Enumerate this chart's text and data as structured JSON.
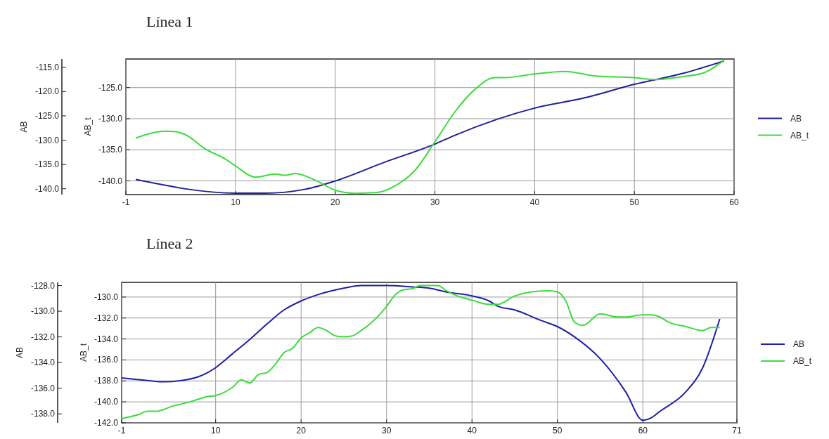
{
  "chart_data": [
    {
      "type": "line",
      "title": "Línea 1",
      "ylabel": "AB_t",
      "y2label": "AB",
      "xlim": [
        -1,
        60
      ],
      "xticks": [
        -1,
        10,
        20,
        30,
        40,
        50,
        60
      ],
      "ylim": [
        -142.2,
        -120.4
      ],
      "yticks": [
        {
          "value": -125,
          "label": "-125.0"
        },
        {
          "value": -130,
          "label": "-130.0"
        },
        {
          "value": -135,
          "label": "-135.0"
        },
        {
          "value": -140,
          "label": "-140.0"
        }
      ],
      "y2lim": [
        -141.2,
        -113.3
      ],
      "y2ticks": [
        {
          "value": -115,
          "label": "-115.0"
        },
        {
          "value": -120,
          "label": "-120.0"
        },
        {
          "value": -125,
          "label": "-125.0"
        },
        {
          "value": -130,
          "label": "-130.0"
        },
        {
          "value": -135,
          "label": "-135.0"
        },
        {
          "value": -140,
          "label": "-140.0"
        }
      ],
      "grid": true,
      "legend": "right",
      "series": [
        {
          "name": "AB",
          "color": "#1f1f99",
          "axis": "y2",
          "x": [
            0,
            10,
            13,
            17,
            20,
            25,
            30,
            32,
            40,
            45,
            50,
            55,
            59
          ],
          "values": [
            -138.1,
            -140.9,
            -140.9,
            -140.1,
            -138.4,
            -134.5,
            -130.8,
            -129.0,
            -123.4,
            -121.3,
            -118.5,
            -116.2,
            -113.7
          ]
        },
        {
          "name": "AB_t",
          "color": "#3cdc3c",
          "x": [
            0,
            3,
            4,
            5,
            7,
            9,
            10,
            12,
            14,
            15,
            16,
            18,
            20,
            22,
            24,
            26,
            28,
            30,
            32,
            34,
            36,
            37,
            40,
            43,
            46,
            50,
            52,
            55,
            57,
            59
          ],
          "values": [
            -133.1,
            -132.0,
            -132.1,
            -132.6,
            -134.9,
            -136.5,
            -137.6,
            -139.4,
            -138.9,
            -139.1,
            -138.8,
            -139.9,
            -141.5,
            -142.0,
            -141.9,
            -140.8,
            -138.3,
            -133.7,
            -128.9,
            -125.3,
            -123.4,
            -123.4,
            -122.8,
            -122.4,
            -123.1,
            -123.4,
            -123.7,
            -123.2,
            -122.6,
            -120.6
          ]
        }
      ]
    },
    {
      "type": "line",
      "title": "Línea 2",
      "ylabel": "AB_t",
      "y2label": "AB",
      "xlim": [
        -1,
        71
      ],
      "xticks": [
        -1,
        10,
        20,
        30,
        40,
        50,
        60,
        71
      ],
      "ylim": [
        -142.0,
        -128.6
      ],
      "yticks": [
        {
          "value": -130,
          "label": "-130.0"
        },
        {
          "value": -132,
          "label": "-132.0"
        },
        {
          "value": -134,
          "label": "-134.0"
        },
        {
          "value": -136,
          "label": "-136.0"
        },
        {
          "value": -138,
          "label": "-138.0"
        },
        {
          "value": -140,
          "label": "-140.0"
        },
        {
          "value": -142,
          "label": "-142.0"
        }
      ],
      "y2lim": [
        -138.7,
        -127.75
      ],
      "y2ticks": [
        {
          "value": -128,
          "label": "-128.0"
        },
        {
          "value": -130,
          "label": "-130.0"
        },
        {
          "value": -132,
          "label": "-132.0"
        },
        {
          "value": -134,
          "label": "-134.0"
        },
        {
          "value": -136,
          "label": "-136.0"
        },
        {
          "value": -138,
          "label": "-138.0"
        }
      ],
      "grid": true,
      "legend": "right",
      "series": [
        {
          "name": "AB",
          "color": "#1f1fa8",
          "axis": "y2",
          "x": [
            -1,
            2,
            4,
            6,
            8,
            9,
            10,
            12,
            14,
            16,
            18,
            20,
            22,
            25,
            27,
            30,
            33,
            35,
            37,
            40,
            42,
            43,
            45,
            48,
            50,
            52,
            55,
            58,
            60,
            61,
            62,
            65,
            67,
            69
          ],
          "values": [
            -135.2,
            -135.4,
            -135.5,
            -135.4,
            -135.1,
            -134.8,
            -134.4,
            -133.3,
            -132.2,
            -131.0,
            -129.9,
            -129.2,
            -128.7,
            -128.2,
            -128.0,
            -128.0,
            -128.1,
            -128.2,
            -128.5,
            -128.8,
            -129.2,
            -129.6,
            -129.9,
            -130.7,
            -131.2,
            -132.0,
            -133.7,
            -136.3,
            -138.5,
            -138.3,
            -137.8,
            -136.3,
            -134.4,
            -130.6
          ]
        },
        {
          "name": "AB_t",
          "color": "#3cdc3c",
          "x": [
            -1,
            1,
            2,
            3,
            5,
            7,
            9,
            10,
            11,
            12,
            13,
            14,
            15,
            16,
            17,
            18,
            19,
            20,
            21,
            22,
            23,
            24,
            25,
            26,
            27,
            28,
            30,
            31,
            32,
            33,
            34,
            35,
            36,
            37,
            38,
            40,
            42,
            43,
            45,
            47,
            49,
            50,
            51,
            52,
            53,
            55,
            57,
            58,
            60,
            61,
            62,
            63,
            65,
            67,
            68,
            69
          ],
          "values": [
            -141.6,
            -141.2,
            -140.9,
            -140.9,
            -140.4,
            -140.0,
            -139.5,
            -139.4,
            -139.1,
            -138.6,
            -137.9,
            -138.2,
            -137.4,
            -137.2,
            -136.4,
            -135.3,
            -134.9,
            -133.9,
            -133.4,
            -132.9,
            -133.2,
            -133.7,
            -133.8,
            -133.7,
            -133.2,
            -132.6,
            -130.9,
            -129.8,
            -129.3,
            -129.2,
            -128.9,
            -128.9,
            -128.9,
            -129.4,
            -129.8,
            -130.3,
            -130.7,
            -130.7,
            -129.9,
            -129.5,
            -129.4,
            -129.5,
            -130.4,
            -132.4,
            -132.7,
            -131.6,
            -131.9,
            -131.9,
            -131.7,
            -131.7,
            -131.9,
            -132.4,
            -132.8,
            -133.2,
            -132.9,
            -132.9
          ]
        }
      ]
    }
  ]
}
